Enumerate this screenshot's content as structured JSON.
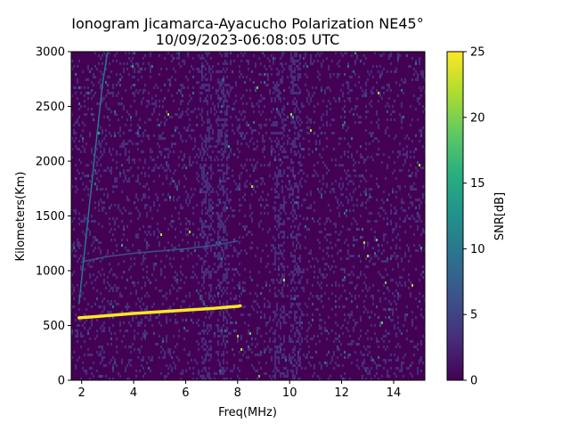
{
  "chart_data": {
    "type": "heatmap",
    "title_line1": "Ionogram Jicamarca-Ayacucho Polarization NE45°",
    "title_line2": "10/09/2023-06:08:05 UTC",
    "xlabel": "Freq(MHz)",
    "ylabel": "Kilometers(Km)",
    "xlim": [
      1.6,
      15.2
    ],
    "ylim": [
      0,
      3000
    ],
    "x_ticks": [
      "2",
      "4",
      "6",
      "8",
      "10",
      "12",
      "14"
    ],
    "y_ticks": [
      "0",
      "500",
      "1000",
      "1500",
      "2000",
      "2500",
      "3000"
    ],
    "colorbar": {
      "label": "SNR[dB]",
      "range": [
        0,
        25
      ],
      "ticks": [
        "0",
        "5",
        "10",
        "15",
        "20",
        "25"
      ],
      "colormap": [
        "#440154",
        "#472d7b",
        "#3b528b",
        "#2c728e",
        "#21918c",
        "#28ae80",
        "#5ec962",
        "#addc30",
        "#fde725"
      ]
    },
    "traces": [
      {
        "name": "F-layer echo",
        "snr": 25,
        "points": [
          [
            1.9,
            570
          ],
          [
            2.5,
            580
          ],
          [
            3.0,
            590
          ],
          [
            4.0,
            610
          ],
          [
            5.0,
            625
          ],
          [
            6.0,
            640
          ],
          [
            7.0,
            655
          ],
          [
            8.0,
            675
          ],
          [
            8.1,
            680
          ]
        ]
      },
      {
        "name": "second-hop echo",
        "snr": 6,
        "points": [
          [
            2.0,
            1080
          ],
          [
            3.0,
            1130
          ],
          [
            4.0,
            1160
          ],
          [
            5.0,
            1180
          ],
          [
            6.0,
            1200
          ],
          [
            7.0,
            1230
          ],
          [
            8.0,
            1270
          ]
        ]
      },
      {
        "name": "vertical streak",
        "snr": 8,
        "points": [
          [
            1.9,
            700
          ],
          [
            2.3,
            1600
          ],
          [
            2.8,
            2700
          ],
          [
            3.0,
            3000
          ]
        ]
      }
    ],
    "interference_bands_mhz": [
      6.8,
      7.4,
      9.6,
      10.2
    ]
  }
}
